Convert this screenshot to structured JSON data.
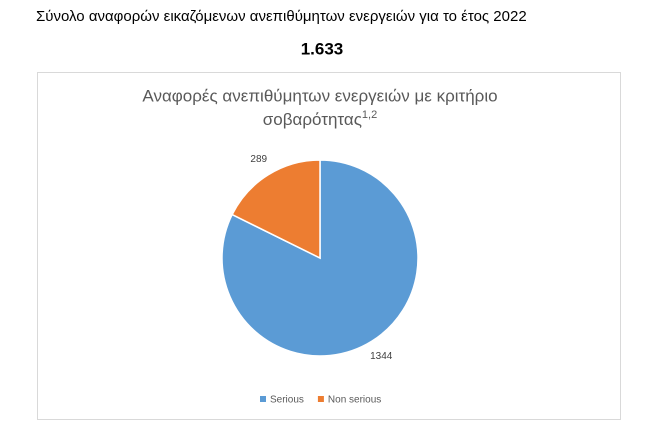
{
  "header": {
    "title": "Σύνολο αναφορών εικαζόμενων ανεπιθύμητων ενεργειών για το έτος 2022",
    "total": "1.633"
  },
  "chart_data": {
    "type": "pie",
    "title": [
      "Αναφορές ανεπιθύμητων ενεργειών με κριτήριο",
      "σοβαρότητας"
    ],
    "title_superscript": "1,2",
    "categories": [
      "Serious",
      "Non serious"
    ],
    "values": [
      1344,
      289
    ],
    "colors": [
      "#5b9bd5",
      "#ed7d31"
    ]
  }
}
